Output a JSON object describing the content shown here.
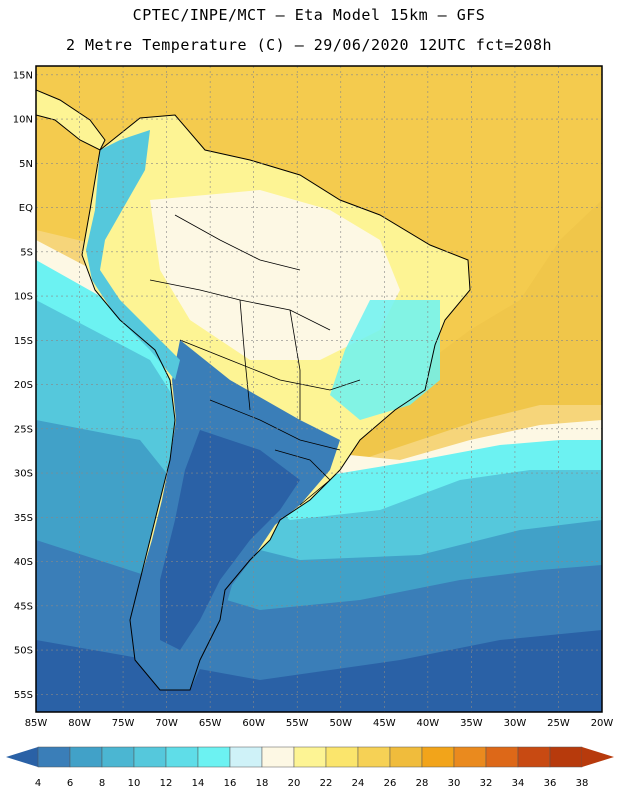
{
  "header": {
    "title_line1": "CPTEC/INPE/MCT –  Eta Model 15km – GFS",
    "title_line2": "2 Metre Temperature (C) – 29/06/2020 12UTC fct=208h"
  },
  "map": {
    "lat_labels": [
      "15N",
      "10N",
      "5N",
      "EQ",
      "5S",
      "10S",
      "15S",
      "20S",
      "25S",
      "30S",
      "35S",
      "40S",
      "45S",
      "50S",
      "55S"
    ],
    "lon_labels": [
      "85W",
      "80W",
      "75W",
      "70W",
      "65W",
      "60W",
      "55W",
      "50W",
      "45W",
      "40W",
      "35W",
      "30W",
      "25W",
      "20W"
    ],
    "lat_range": [
      -57,
      16
    ],
    "lon_range": [
      -85,
      -20
    ]
  },
  "colorbar": {
    "labels": [
      "4",
      "6",
      "8",
      "10",
      "12",
      "14",
      "16",
      "18",
      "20",
      "22",
      "24",
      "26",
      "28",
      "30",
      "32",
      "34",
      "36",
      "38"
    ],
    "colors": [
      "#2a61a6",
      "#3a7eb8",
      "#41a1c8",
      "#4bb6d2",
      "#55c8dc",
      "#5fdde8",
      "#6cf2f2",
      "#cff2f8",
      "#fdf8e4",
      "#fdf494",
      "#fbe56c",
      "#f6d155",
      "#f0bc3c",
      "#f2a41a",
      "#ea8a1e",
      "#dd6818",
      "#c84a12",
      "#b73a0c"
    ]
  }
}
